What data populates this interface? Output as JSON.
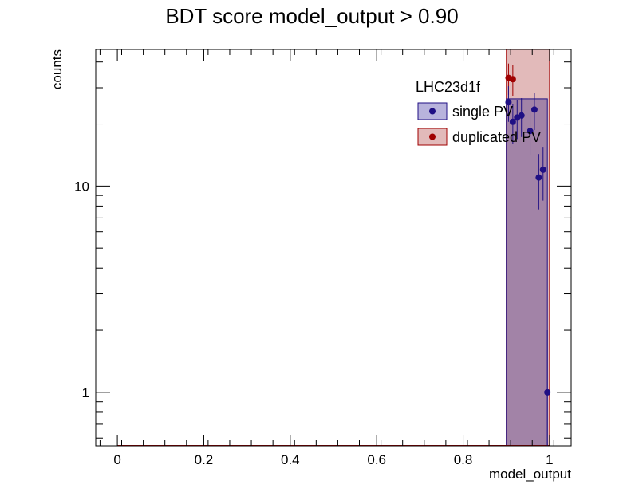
{
  "chart_data": {
    "type": "scatter",
    "title": "BDT score  model_output > 0.90",
    "xlabel": "model_output",
    "ylabel": "counts",
    "xlim": [
      -0.05,
      1.05
    ],
    "ylim": [
      0.55,
      46
    ],
    "yscale": "log",
    "grid": false,
    "legend": {
      "title": "LHC23d1f",
      "placement": "top-right"
    },
    "x_ticks": [
      "0",
      "0.2",
      "0.4",
      "0.6",
      "0.8",
      "1"
    ],
    "y_ticks": [
      "1",
      "10"
    ],
    "series": [
      {
        "name": "single PV",
        "color": "#1f0f84",
        "fill": "#9b92c9",
        "fill_range": [
          0.9,
          0.995
        ],
        "points": [
          {
            "x": 0.905,
            "y": 25.5,
            "err": 5.0
          },
          {
            "x": 0.915,
            "y": 20.5,
            "err": 4.5
          },
          {
            "x": 0.925,
            "y": 21.5,
            "err": 4.6
          },
          {
            "x": 0.935,
            "y": 22.0,
            "err": 4.7
          },
          {
            "x": 0.955,
            "y": 18.5,
            "err": 4.3
          },
          {
            "x": 0.965,
            "y": 23.5,
            "err": 4.8
          },
          {
            "x": 0.975,
            "y": 11.0,
            "err": 3.3
          },
          {
            "x": 0.985,
            "y": 12.0,
            "err": 3.5
          },
          {
            "x": 0.995,
            "y": 1.0,
            "err": 1.0
          }
        ]
      },
      {
        "name": "duplicated PV",
        "color": "#a00000",
        "fill": "#e2baba",
        "fill_range": [
          0.9,
          1.0
        ],
        "points": [
          {
            "x": 0.905,
            "y": 33.5,
            "err": 5.8
          },
          {
            "x": 0.915,
            "y": 33.0,
            "err": 5.7
          }
        ]
      }
    ]
  }
}
